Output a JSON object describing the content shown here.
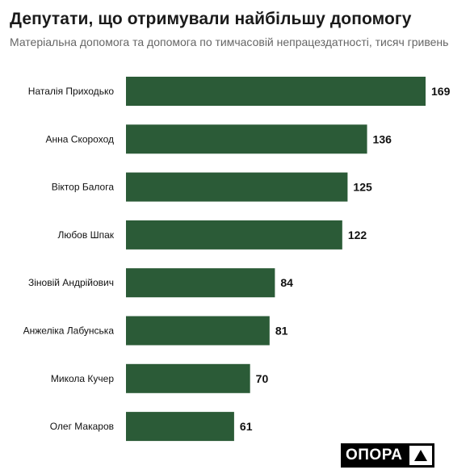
{
  "chart_data": {
    "type": "bar",
    "orientation": "horizontal",
    "title": "Депутати, що отримували найбільшу допомогу",
    "subtitle": "Матеріальна допомога та допомога по тимчасовій непрацездатності, тисяч гривень",
    "categories": [
      "Наталія Приходько",
      "Анна Скороход",
      "Віктор Балога",
      "Любов Шпак",
      "Зіновій Андрійович",
      "Анжеліка Лабунська",
      "Микола Кучер",
      "Олег Макаров"
    ],
    "values": [
      169,
      136,
      125,
      122,
      84,
      81,
      70,
      61
    ],
    "xlim": [
      0,
      169
    ],
    "grid": false,
    "legend": "none",
    "bar_color": "#2b5b37"
  },
  "logo": {
    "text": "ОПОРА"
  }
}
